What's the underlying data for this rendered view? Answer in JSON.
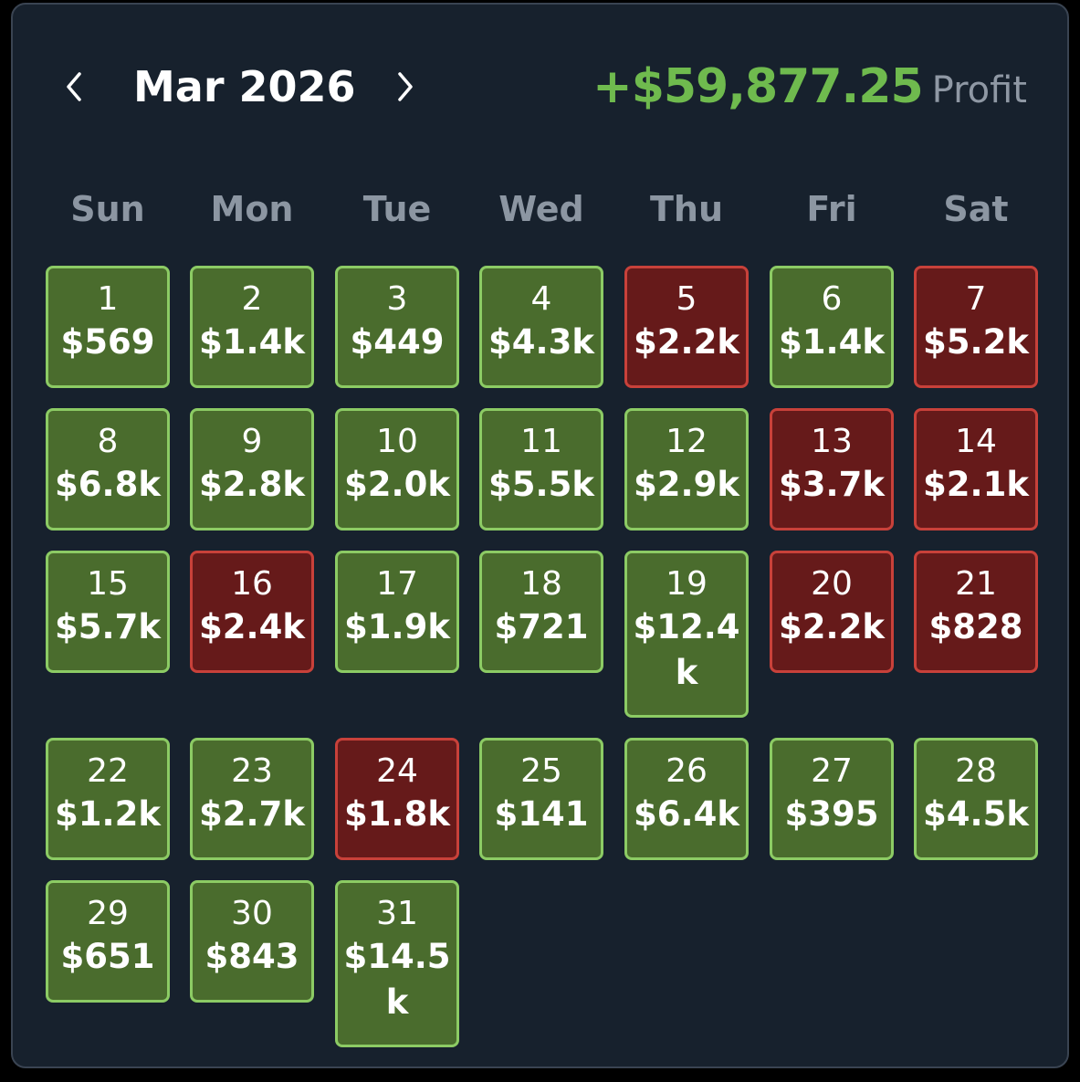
{
  "header": {
    "prev_icon": "chevron-left-icon",
    "next_icon": "chevron-right-icon",
    "month_label": "Mar 2026",
    "profit_amount": "+$59,877.25",
    "profit_label": "Profit"
  },
  "colors": {
    "background": "#17212d",
    "profit_green": "#6fba4e",
    "win_fill": "#4a6c2d",
    "win_border": "#8ccb64",
    "loss_fill": "#661a1a",
    "loss_border": "#c8413a"
  },
  "weekdays": [
    "Sun",
    "Mon",
    "Tue",
    "Wed",
    "Thu",
    "Fri",
    "Sat"
  ],
  "days": [
    {
      "day": "1",
      "amount": "$569",
      "status": "profit"
    },
    {
      "day": "2",
      "amount": "$1.4k",
      "status": "profit"
    },
    {
      "day": "3",
      "amount": "$449",
      "status": "profit"
    },
    {
      "day": "4",
      "amount": "$4.3k",
      "status": "profit"
    },
    {
      "day": "5",
      "amount": "$2.2k",
      "status": "loss"
    },
    {
      "day": "6",
      "amount": "$1.4k",
      "status": "profit"
    },
    {
      "day": "7",
      "amount": "$5.2k",
      "status": "loss"
    },
    {
      "day": "8",
      "amount": "$6.8k",
      "status": "profit"
    },
    {
      "day": "9",
      "amount": "$2.8k",
      "status": "profit"
    },
    {
      "day": "10",
      "amount": "$2.0k",
      "status": "profit"
    },
    {
      "day": "11",
      "amount": "$5.5k",
      "status": "profit"
    },
    {
      "day": "12",
      "amount": "$2.9k",
      "status": "profit"
    },
    {
      "day": "13",
      "amount": "$3.7k",
      "status": "loss"
    },
    {
      "day": "14",
      "amount": "$2.1k",
      "status": "loss"
    },
    {
      "day": "15",
      "amount": "$5.7k",
      "status": "profit"
    },
    {
      "day": "16",
      "amount": "$2.4k",
      "status": "loss"
    },
    {
      "day": "17",
      "amount": "$1.9k",
      "status": "profit"
    },
    {
      "day": "18",
      "amount": "$721",
      "status": "profit"
    },
    {
      "day": "19",
      "amount": "$12.4k",
      "status": "profit"
    },
    {
      "day": "20",
      "amount": "$2.2k",
      "status": "loss"
    },
    {
      "day": "21",
      "amount": "$828",
      "status": "loss"
    },
    {
      "day": "22",
      "amount": "$1.2k",
      "status": "profit"
    },
    {
      "day": "23",
      "amount": "$2.7k",
      "status": "profit"
    },
    {
      "day": "24",
      "amount": "$1.8k",
      "status": "loss"
    },
    {
      "day": "25",
      "amount": "$141",
      "status": "profit"
    },
    {
      "day": "26",
      "amount": "$6.4k",
      "status": "profit"
    },
    {
      "day": "27",
      "amount": "$395",
      "status": "profit"
    },
    {
      "day": "28",
      "amount": "$4.5k",
      "status": "profit"
    },
    {
      "day": "29",
      "amount": "$651",
      "status": "profit"
    },
    {
      "day": "30",
      "amount": "$843",
      "status": "profit"
    },
    {
      "day": "31",
      "amount": "$14.5k",
      "status": "profit"
    }
  ]
}
